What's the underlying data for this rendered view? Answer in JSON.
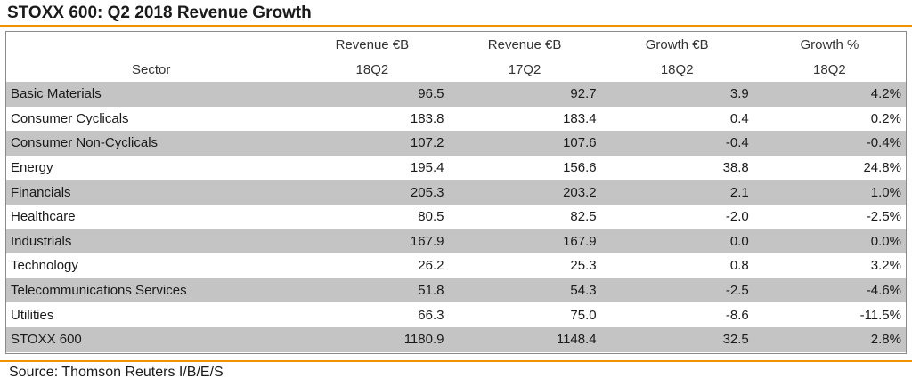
{
  "title": "STOXX 600: Q2 2018 Revenue Growth",
  "source": "Source: Thomson Reuters I/B/E/S",
  "chart_data": {
    "type": "table",
    "title": "STOXX 600: Q2 2018 Revenue Growth",
    "header_top": [
      "",
      "Revenue €B",
      "Revenue €B",
      "Growth €B",
      "Growth %"
    ],
    "header_bottom": [
      "Sector",
      "18Q2",
      "17Q2",
      "18Q2",
      "18Q2"
    ],
    "rows": [
      {
        "sector": "Basic Materials",
        "rev18": "96.5",
        "rev17": "92.7",
        "growth_b": "3.9",
        "growth_pct": "4.2%"
      },
      {
        "sector": "Consumer Cyclicals",
        "rev18": "183.8",
        "rev17": "183.4",
        "growth_b": "0.4",
        "growth_pct": "0.2%"
      },
      {
        "sector": "Consumer Non-Cyclicals",
        "rev18": "107.2",
        "rev17": "107.6",
        "growth_b": "-0.4",
        "growth_pct": "-0.4%"
      },
      {
        "sector": "Energy",
        "rev18": "195.4",
        "rev17": "156.6",
        "growth_b": "38.8",
        "growth_pct": "24.8%"
      },
      {
        "sector": "Financials",
        "rev18": "205.3",
        "rev17": "203.2",
        "growth_b": "2.1",
        "growth_pct": "1.0%"
      },
      {
        "sector": "Healthcare",
        "rev18": "80.5",
        "rev17": "82.5",
        "growth_b": "-2.0",
        "growth_pct": "-2.5%"
      },
      {
        "sector": "Industrials",
        "rev18": "167.9",
        "rev17": "167.9",
        "growth_b": "0.0",
        "growth_pct": "0.0%"
      },
      {
        "sector": "Technology",
        "rev18": "26.2",
        "rev17": "25.3",
        "growth_b": "0.8",
        "growth_pct": "3.2%"
      },
      {
        "sector": "Telecommunications Services",
        "rev18": "51.8",
        "rev17": "54.3",
        "growth_b": "-2.5",
        "growth_pct": "-4.6%"
      },
      {
        "sector": "Utilities",
        "rev18": "66.3",
        "rev17": "75.0",
        "growth_b": "-8.6",
        "growth_pct": "-11.5%"
      }
    ],
    "total": {
      "sector": "STOXX 600",
      "rev18": "1180.9",
      "rev17": "1148.4",
      "growth_b": "32.5",
      "growth_pct": "2.8%"
    }
  }
}
